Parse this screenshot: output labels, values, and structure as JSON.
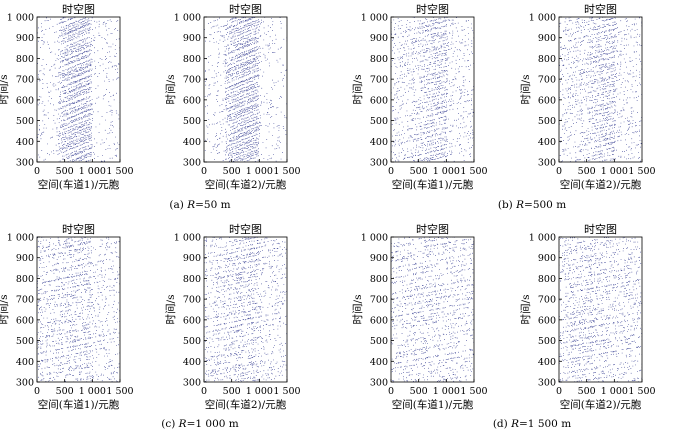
{
  "figure": {
    "captions": [
      {
        "prefix": "(a) ",
        "var": "R",
        "rest": "=50 m"
      },
      {
        "prefix": "(b) ",
        "var": "R",
        "rest": "=500 m"
      },
      {
        "prefix": "(c) ",
        "var": "R",
        "rest": "=1 000 m"
      },
      {
        "prefix": "(d) ",
        "var": "R",
        "rest": "=1 500 m"
      }
    ]
  },
  "colors": {
    "dots": "#27308a",
    "axis": "#000000"
  },
  "chart_data": [
    {
      "type": "scatter",
      "title": "时空图",
      "xlabel": "空间(车道1)/元胞",
      "ylabel": "时间/s",
      "xlim": [
        0,
        1500
      ],
      "ylim": [
        300,
        1000
      ],
      "xticks": [
        "0",
        "500",
        "1 000",
        "1 500"
      ],
      "yticks": [
        "300",
        "400",
        "500",
        "600",
        "700",
        "800",
        "900",
        "1 000"
      ],
      "density_profile": [
        [
          0,
          0.12
        ],
        [
          350,
          0.14
        ],
        [
          420,
          0.55
        ],
        [
          560,
          0.8
        ],
        [
          760,
          0.9
        ],
        [
          960,
          0.85
        ],
        [
          1000,
          0.14
        ],
        [
          1500,
          0.12
        ]
      ],
      "trajectory_slope": 2.2
    },
    {
      "type": "scatter",
      "title": "时空图",
      "xlabel": "空间(车道2)/元胞",
      "ylabel": "时间/s",
      "xlim": [
        0,
        1500
      ],
      "ylim": [
        300,
        1000
      ],
      "xticks": [
        "0",
        "500",
        "1 000",
        "1 500"
      ],
      "yticks": [
        "300",
        "400",
        "500",
        "600",
        "700",
        "800",
        "900",
        "1 000"
      ],
      "density_profile": [
        [
          0,
          0.12
        ],
        [
          350,
          0.14
        ],
        [
          420,
          0.55
        ],
        [
          560,
          0.8
        ],
        [
          760,
          0.9
        ],
        [
          960,
          0.85
        ],
        [
          1000,
          0.14
        ],
        [
          1500,
          0.12
        ]
      ],
      "trajectory_slope": 2.2
    },
    {
      "type": "scatter",
      "title": "时空图",
      "xlabel": "空间(车道1)/元胞",
      "ylabel": "时间/s",
      "xlim": [
        0,
        1500
      ],
      "ylim": [
        300,
        1000
      ],
      "xticks": [
        "0",
        "500",
        "1 000",
        "1 500"
      ],
      "yticks": [
        "300",
        "400",
        "500",
        "600",
        "700",
        "800",
        "900",
        "1 000"
      ],
      "density_profile": [
        [
          0,
          0.2
        ],
        [
          500,
          0.35
        ],
        [
          800,
          0.55
        ],
        [
          1000,
          0.6
        ],
        [
          1020,
          0.2
        ],
        [
          1500,
          0.18
        ]
      ],
      "trajectory_slope": 3.5
    },
    {
      "type": "scatter",
      "title": "时空图",
      "xlabel": "空间(车道2)/元胞",
      "ylabel": "时间/s",
      "xlim": [
        0,
        1500
      ],
      "ylim": [
        300,
        1000
      ],
      "xticks": [
        "0",
        "500",
        "1 000",
        "1 500"
      ],
      "yticks": [
        "300",
        "400",
        "500",
        "600",
        "700",
        "800",
        "900",
        "1 000"
      ],
      "density_profile": [
        [
          0,
          0.2
        ],
        [
          500,
          0.35
        ],
        [
          800,
          0.55
        ],
        [
          1000,
          0.6
        ],
        [
          1020,
          0.2
        ],
        [
          1500,
          0.18
        ]
      ],
      "trajectory_slope": 3.5
    },
    {
      "type": "scatter",
      "title": "时空图",
      "xlabel": "空间(车道1)/元胞",
      "ylabel": "时间/s",
      "xlim": [
        0,
        1500
      ],
      "ylim": [
        300,
        1000
      ],
      "xticks": [
        "0",
        "500",
        "1 000",
        "1 500"
      ],
      "yticks": [
        "300",
        "400",
        "500",
        "600",
        "700",
        "800",
        "900",
        "1 000"
      ],
      "density_profile": [
        [
          0,
          0.25
        ],
        [
          400,
          0.35
        ],
        [
          700,
          0.42
        ],
        [
          950,
          0.45
        ],
        [
          1000,
          0.22
        ],
        [
          1500,
          0.2
        ]
      ],
      "trajectory_slope": 4.5
    },
    {
      "type": "scatter",
      "title": "时空图",
      "xlabel": "空间(车道2)/元胞",
      "ylabel": "时间/s",
      "xlim": [
        0,
        1500
      ],
      "ylim": [
        300,
        1000
      ],
      "xticks": [
        "0",
        "500",
        "1 000",
        "1 500"
      ],
      "yticks": [
        "300",
        "400",
        "500",
        "600",
        "700",
        "800",
        "900",
        "1 000"
      ],
      "density_profile": [
        [
          0,
          0.25
        ],
        [
          400,
          0.35
        ],
        [
          700,
          0.45
        ],
        [
          950,
          0.45
        ],
        [
          1000,
          0.22
        ],
        [
          1500,
          0.2
        ]
      ],
      "trajectory_slope": 4.5
    },
    {
      "type": "scatter",
      "title": "时空图",
      "xlabel": "空间(车道1)/元胞",
      "ylabel": "时间/s",
      "xlim": [
        0,
        1500
      ],
      "ylim": [
        300,
        1000
      ],
      "xticks": [
        "0",
        "500",
        "1 000",
        "1 500"
      ],
      "yticks": [
        "300",
        "400",
        "500",
        "600",
        "700",
        "800",
        "900",
        "1 000"
      ],
      "density_profile": [
        [
          0,
          0.25
        ],
        [
          400,
          0.32
        ],
        [
          700,
          0.32
        ],
        [
          1000,
          0.28
        ],
        [
          1500,
          0.25
        ]
      ],
      "trajectory_slope": 5
    },
    {
      "type": "scatter",
      "title": "时空图",
      "xlabel": "空间(车道2)/元胞",
      "ylabel": "时间/s",
      "xlim": [
        0,
        1500
      ],
      "ylim": [
        300,
        1000
      ],
      "xticks": [
        "0",
        "500",
        "1 000",
        "1 500"
      ],
      "yticks": [
        "300",
        "400",
        "500",
        "600",
        "700",
        "800",
        "900",
        "1 000"
      ],
      "density_profile": [
        [
          0,
          0.25
        ],
        [
          350,
          0.4
        ],
        [
          600,
          0.42
        ],
        [
          1000,
          0.28
        ],
        [
          1500,
          0.25
        ]
      ],
      "trajectory_slope": 5
    }
  ]
}
